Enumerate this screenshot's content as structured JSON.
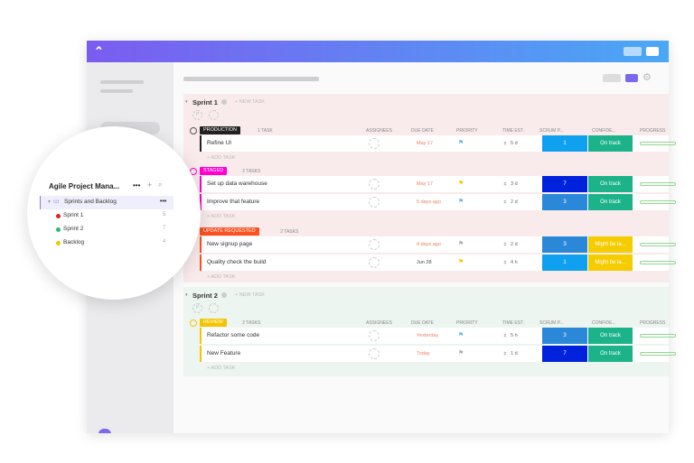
{
  "sidebar": {
    "title": "Agile Project Mana...",
    "folder": "Sprints and Backlog",
    "lists": [
      {
        "name": "Sprint 1",
        "count": "5",
        "color": "#e02020"
      },
      {
        "name": "Sprint 2",
        "count": "7",
        "color": "#20c070"
      },
      {
        "name": "Backlog",
        "count": "4",
        "color": "#f5c400"
      }
    ]
  },
  "columns": [
    "ASSIGNEES",
    "DUE DATE",
    "PRIORITY",
    "TIME EST.",
    "SCRUM P...",
    "CONFIDE...",
    "PROGRESS"
  ],
  "new_task": "+ NEW TASK",
  "add_task": "+ ADD TASK",
  "sprints": [
    {
      "title": "Sprint 1",
      "groups": [
        {
          "status": "PRODUCTION",
          "color": "#222222",
          "count": "1 TASK",
          "tasks": [
            {
              "name": "Refine UI",
              "due": "May 17",
              "due_color": "#f08060",
              "flag": "#60b8f0",
              "est": "5 d",
              "scrum": "1",
              "scrum_color": "#10a0f0",
              "conf": "On track",
              "conf_color": "#1db38a"
            }
          ]
        },
        {
          "status": "STAGED",
          "color": "#ff00d0",
          "count": "2 TASKS",
          "tasks": [
            {
              "name": "Set up data warehouse",
              "due": "May 17",
              "due_color": "#f08060",
              "flag": "#f5c400",
              "est": "3 d",
              "scrum": "7",
              "scrum_color": "#0022dd",
              "conf": "On track",
              "conf_color": "#1db38a"
            },
            {
              "name": "Improve that feature",
              "due": "5 days ago",
              "due_color": "#f08060",
              "flag": "#60b8f0",
              "est": "2 d",
              "scrum": "3",
              "scrum_color": "#2b88d8",
              "conf": "On track",
              "conf_color": "#1db38a"
            }
          ]
        },
        {
          "status": "UPDATE REQUESTED",
          "color": "#ff5020",
          "count": "2 TASKS",
          "tasks": [
            {
              "name": "New signup page",
              "due": "4 days ago",
              "due_color": "#f08060",
              "flag": "#aaaaaa",
              "est": "2 d",
              "scrum": "3",
              "scrum_color": "#2b88d8",
              "conf": "Might be la...",
              "conf_color": "#f5cc00"
            },
            {
              "name": "Quality check the build",
              "due": "Jun 28",
              "due_color": "#444444",
              "flag": "#f5c400",
              "est": "4 h",
              "scrum": "1",
              "scrum_color": "#10a0f0",
              "conf": "Might be la...",
              "conf_color": "#f5cc00"
            }
          ]
        }
      ]
    },
    {
      "title": "Sprint 2",
      "groups": [
        {
          "status": "REVIEW",
          "color": "#f5c400",
          "count": "2 TASKS",
          "tasks": [
            {
              "name": "Refactor some code",
              "due": "Yesterday",
              "due_color": "#f08060",
              "flag": "#60b8f0",
              "est": "5 h",
              "scrum": "3",
              "scrum_color": "#2b88d8",
              "conf": "On track",
              "conf_color": "#1db38a"
            },
            {
              "name": "New Feature",
              "due": "Today",
              "due_color": "#f08060",
              "flag": "#aaaaaa",
              "est": "1 d",
              "scrum": "7",
              "scrum_color": "#0022dd",
              "conf": "On track",
              "conf_color": "#1db38a"
            }
          ]
        }
      ]
    }
  ]
}
